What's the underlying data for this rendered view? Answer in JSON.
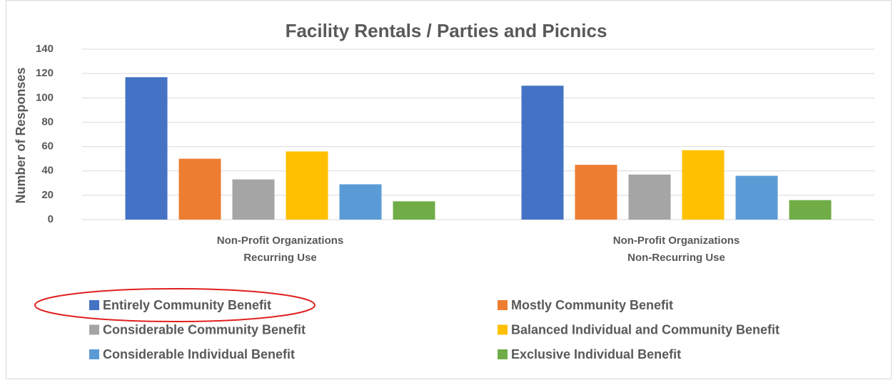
{
  "chart_data": {
    "type": "bar",
    "title": "Facility Rentals / Parties and Picnics",
    "y_label": "Number of Responses",
    "categories": [
      "Non-Profit Organizations\nRecurring Use",
      "Non-Profit Organizations\nNon-Recurring Use"
    ],
    "series": [
      {
        "name": "Entirely Community Benefit",
        "color": "#4472c4",
        "values": [
          117,
          110
        ]
      },
      {
        "name": "Mostly Community Benefit",
        "color": "#ed7d31",
        "values": [
          50,
          45
        ]
      },
      {
        "name": "Considerable Community Benefit",
        "color": "#a5a5a5",
        "values": [
          33,
          37
        ]
      },
      {
        "name": "Balanced Individual and Community Benefit",
        "color": "#ffc000",
        "values": [
          56,
          57
        ]
      },
      {
        "name": "Considerable Individual Benefit",
        "color": "#5b9bd5",
        "values": [
          29,
          36
        ]
      },
      {
        "name": "Exclusive Individual Benefit",
        "color": "#70ad47",
        "values": [
          15,
          16
        ]
      }
    ],
    "ylim": [
      0,
      140
    ],
    "yticks": [
      0,
      20,
      40,
      60,
      80,
      100,
      120,
      140
    ],
    "grid": true,
    "legend": "bottom"
  }
}
